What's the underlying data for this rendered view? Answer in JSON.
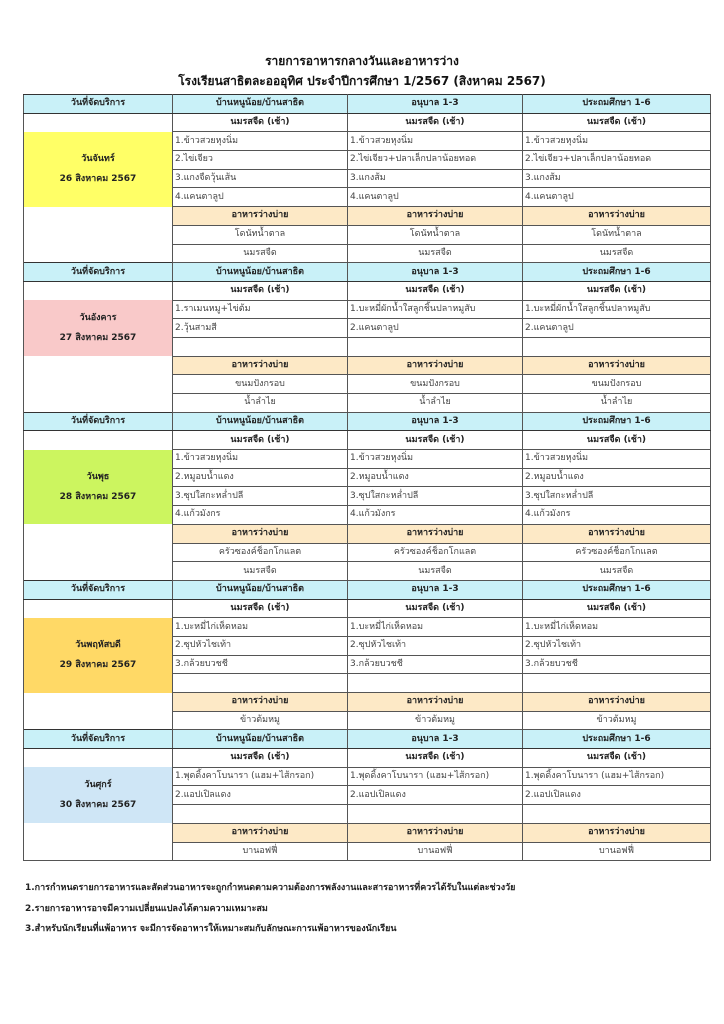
{
  "title": "รายการอาหารกลางวันและอาหารว่าง",
  "subtitle": "โรงเรียนสาธิตละอออุทิศ ประจำปีการศึกษา 1/2567 (สิงหาคม 2567)",
  "header": {
    "date_col": "วันที่จัดบริการ",
    "columns": [
      "บ้านหนูน้อย/บ้านสาธิต",
      "อนุบาล 1-3",
      "ประถมศึกษา 1-6"
    ],
    "header_color": "#c9f1f8"
  },
  "milk_label": "นมรสจืด (เช้า)",
  "snack_label": "อาหารว่างบ่าย",
  "snack_color": "#fde9c6",
  "days": [
    {
      "day": "วันจันทร์",
      "date": "26 สิงหาคม 2567",
      "color": "#ffff66",
      "items": [
        [
          "1.ข้าวสวยหุงนิ่ม",
          "1.ข้าวสวยหุงนิ่ม",
          "1.ข้าวสวยหุงนิ่ม"
        ],
        [
          "2.ไข่เจียว",
          "2.ไข่เจียว+ปลาเล็กปลาน้อยทอด",
          "2.ไข่เจียว+ปลาเล็กปลาน้อยทอด"
        ],
        [
          "3.แกงจืดวุ้นเส้น",
          "3.แกงส้ม",
          "3.แกงส้ม"
        ],
        [
          "4.แคนตาลูป",
          "4.แคนตาลูป",
          "4.แคนตาลูป"
        ]
      ],
      "snacks": [
        [
          "โดนัทน้ำตาล",
          "โดนัทน้ำตาล",
          "โดนัทน้ำตาล"
        ],
        [
          "นมรสจืด",
          "นมรสจืด",
          "นมรสจืด"
        ]
      ]
    },
    {
      "day": "วันอังคาร",
      "date": "27 สิงหาคม 2567",
      "color": "#f9c9c9",
      "items": [
        [
          "1.ราเมนหมู+ไข่ต้ม",
          "1.บะหมี่ผักน้ำใสลูกชิ้นปลาหมูสับ",
          "1.บะหมี่ผักน้ำใสลูกชิ้นปลาหมูสับ"
        ],
        [
          "2.วุ้นสามสี",
          "2.แคนตาลูป",
          "2.แคนตาลูป"
        ],
        [
          "",
          "",
          ""
        ]
      ],
      "snacks": [
        [
          "ขนมปังกรอบ",
          "ขนมปังกรอบ",
          "ขนมปังกรอบ"
        ],
        [
          "น้ำลำไย",
          "น้ำลำไย",
          "น้ำลำไย"
        ]
      ]
    },
    {
      "day": "วันพุธ",
      "date": "28 สิงหาคม 2567",
      "color": "#ccf55f",
      "items": [
        [
          "1.ข้าวสวยหุงนิ่ม",
          "1.ข้าวสวยหุงนิ่ม",
          "1.ข้าวสวยหุงนิ่ม"
        ],
        [
          "2.หมูอบน้ำแดง",
          "2.หมูอบน้ำแดง",
          "2.หมูอบน้ำแดง"
        ],
        [
          "3.ซุปใสกะหล่ำปลี",
          "3.ซุปใสกะหล่ำปลี",
          "3.ซุปใสกะหล่ำปลี"
        ],
        [
          "4.แก้วมังกร",
          "4.แก้วมังกร",
          "4.แก้วมังกร"
        ]
      ],
      "snacks": [
        [
          "ครัวซองค์ช็อกโกแลต",
          "ครัวซองค์ช็อกโกแลต",
          "ครัวซองค์ช็อกโกแลต"
        ],
        [
          "นมรสจืด",
          "นมรสจืด",
          "นมรสจืด"
        ]
      ]
    },
    {
      "day": "วันพฤหัสบดี",
      "date": "29 สิงหาคม 2567",
      "color": "#ffd966",
      "items": [
        [
          "1.บะหมี่ไก่เห็ดหอม",
          "1.บะหมี่ไก่เห็ดหอม",
          "1.บะหมี่ไก่เห็ดหอม"
        ],
        [
          "2.ซุปหัวไชเท้า",
          "2.ซุปหัวไชเท้า",
          "2.ซุปหัวไชเท้า"
        ],
        [
          "3.กล้วยบวชชี",
          "3.กล้วยบวชชี",
          "3.กล้วยบวชชี"
        ],
        [
          "",
          "",
          ""
        ]
      ],
      "snacks": [
        [
          "ข้าวต้มหมู",
          "ข้าวต้มหมู",
          "ข้าวต้มหมู"
        ]
      ]
    },
    {
      "day": "วันศุกร์",
      "date": "30 สิงหาคม 2567",
      "color": "#cfe6f6",
      "items": [
        [
          "1.พุดดิ้งคาโบนารา (แฮม+ไส้กรอก)",
          "1.พุดดิ้งคาโบนารา (แฮม+ไส้กรอก)",
          "1.พุดดิ้งคาโบนารา (แฮม+ไส้กรอก)"
        ],
        [
          "2.แอปเปิลแดง",
          "2.แอปเปิลแดง",
          "2.แอปเปิลแดง"
        ],
        [
          "",
          "",
          ""
        ]
      ],
      "snacks": [
        [
          "บานอฟฟี่",
          "บานอฟฟี่",
          "บานอฟฟี่"
        ]
      ]
    }
  ],
  "notes": [
    "1.การกำหนดรายการอาหารและสัดส่วนอาหารจะถูกกำหนดตามความต้องการพลังงานและสารอาหารที่ควรได้รับในแต่ละช่วงวัย",
    "2.รายการอาหารอาจมีความเปลี่ยนแปลงได้ตามความเหมาะสม",
    "3.สำหรับนักเรียนที่แพ้อาหาร จะมีการจัดอาหารให้เหมาะสมกับลักษณะการแพ้อาหารของนักเรียน"
  ]
}
